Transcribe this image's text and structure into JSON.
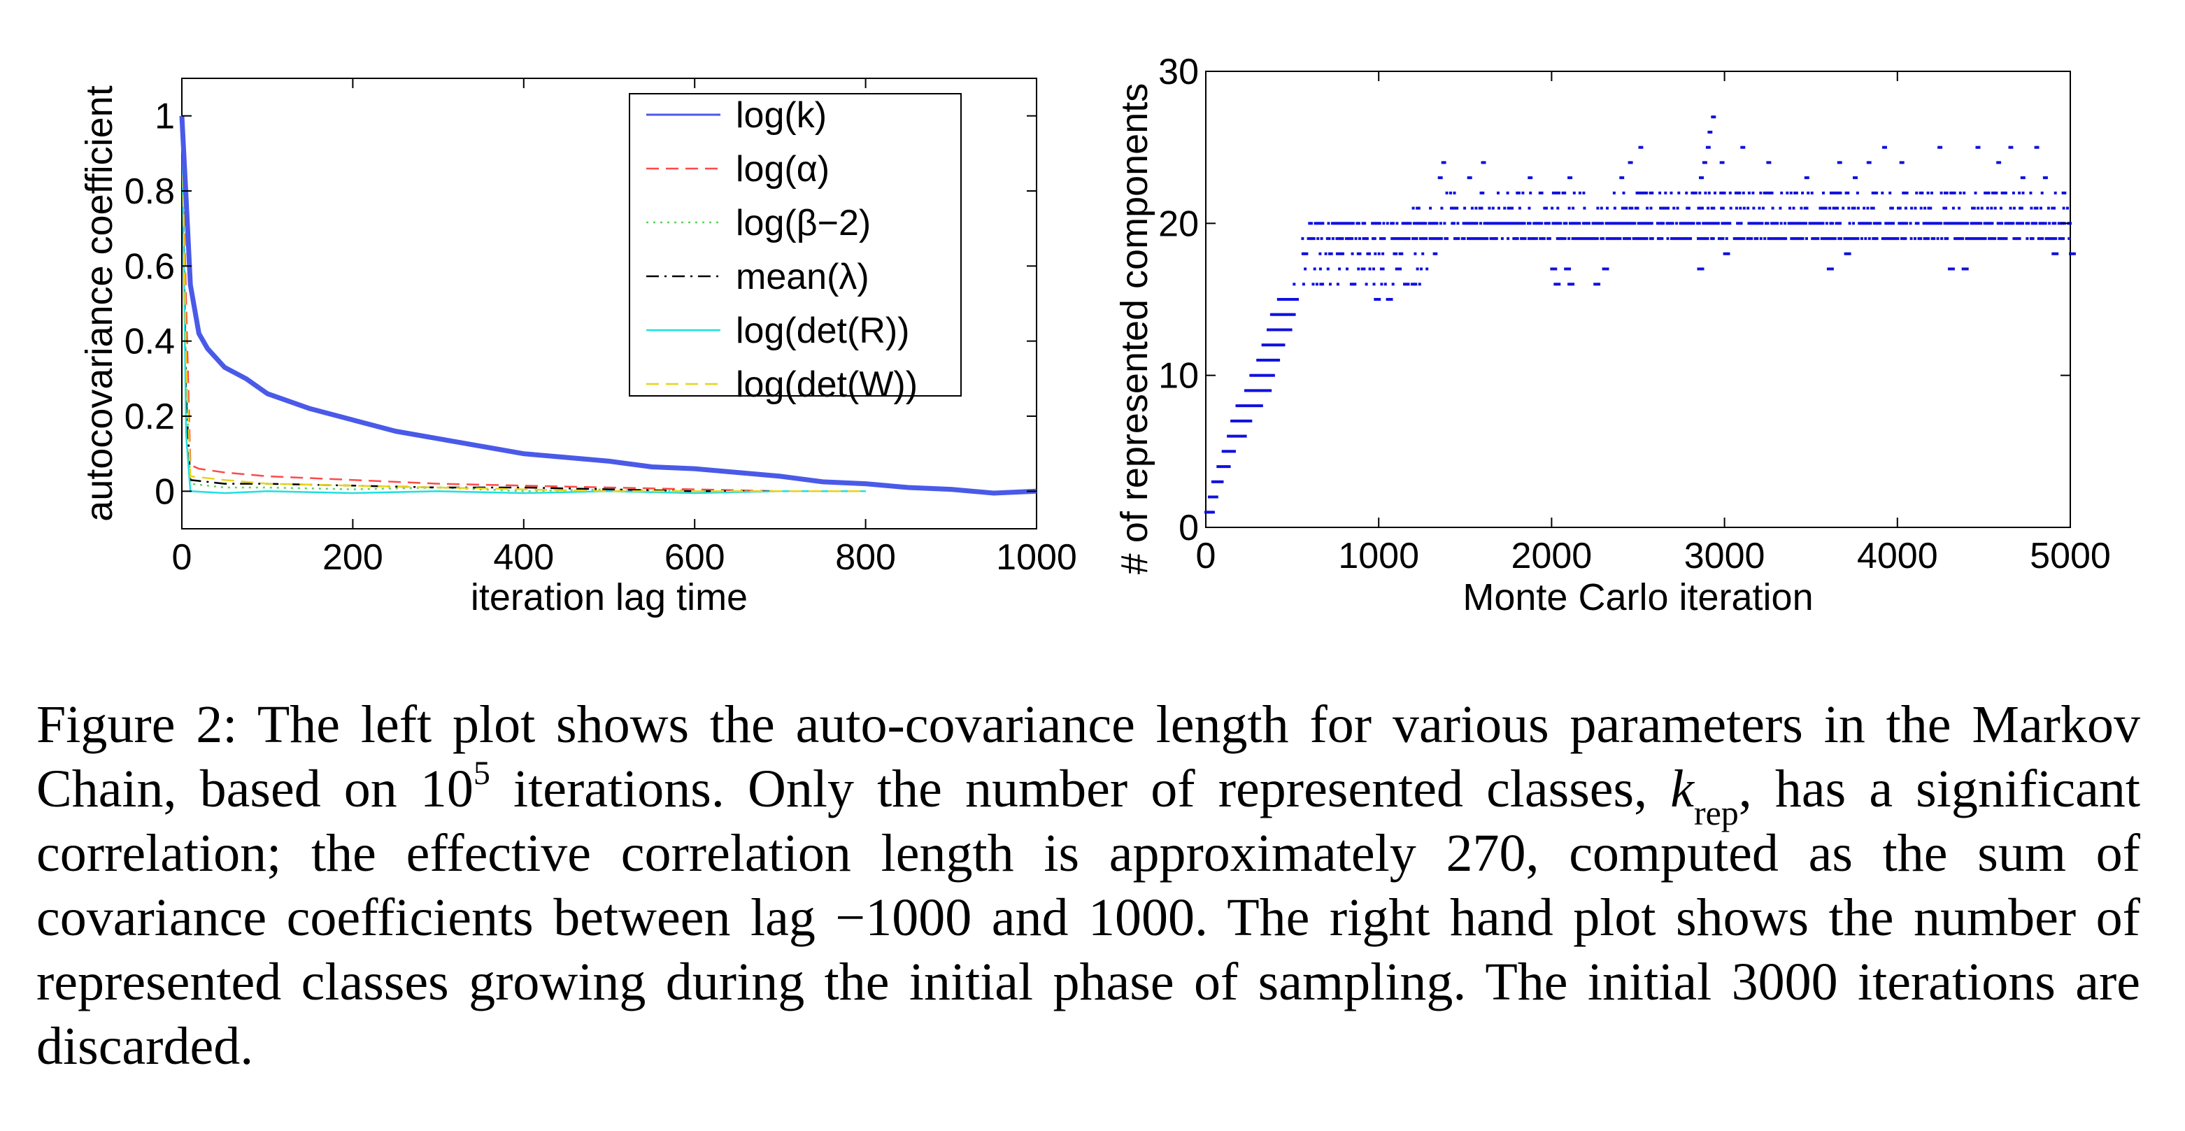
{
  "chart_data": [
    {
      "type": "line",
      "xlabel": "iteration lag time",
      "ylabel": "autocovariance coefficient",
      "xlim": [
        0,
        1000
      ],
      "ylim": [
        -0.1,
        1.1
      ],
      "xticks": [
        0,
        200,
        400,
        600,
        800,
        1000
      ],
      "yticks": [
        0,
        0.2,
        0.4,
        0.6,
        0.8,
        1
      ],
      "xtick_labels": [
        "0",
        "200",
        "400",
        "600",
        "800",
        "1000"
      ],
      "ytick_labels": [
        "0",
        "0.2",
        "0.4",
        "0.6",
        "0.8",
        "1"
      ],
      "grid": false,
      "legend_position": "top-right",
      "series": [
        {
          "name": "log(k)",
          "color": "#4a5ae8",
          "style": "solid",
          "x": [
            0,
            5,
            10,
            20,
            30,
            50,
            75,
            100,
            150,
            200,
            250,
            300,
            350,
            400,
            450,
            500,
            550,
            600,
            650,
            700,
            750,
            800,
            850,
            900,
            950,
            1000
          ],
          "y": [
            1.0,
            0.78,
            0.55,
            0.42,
            0.38,
            0.33,
            0.3,
            0.26,
            0.22,
            0.19,
            0.16,
            0.14,
            0.12,
            0.1,
            0.09,
            0.08,
            0.065,
            0.06,
            0.05,
            0.04,
            0.025,
            0.02,
            0.01,
            0.005,
            -0.005,
            0.0
          ]
        },
        {
          "name": "log(α)",
          "color": "#ff4a4a",
          "style": "dashed",
          "x": [
            0,
            5,
            10,
            20,
            50,
            100,
            200,
            300,
            400,
            500,
            600,
            700,
            800
          ],
          "y": [
            1.0,
            0.5,
            0.07,
            0.06,
            0.05,
            0.04,
            0.03,
            0.02,
            0.015,
            0.01,
            0.005,
            0.0,
            0.0
          ]
        },
        {
          "name": "log(β−2)",
          "color": "#5ad45a",
          "style": "dotted",
          "x": [
            0,
            5,
            10,
            50,
            100,
            200,
            300,
            400,
            500,
            600,
            700,
            800
          ],
          "y": [
            1.0,
            0.3,
            0.02,
            0.01,
            0.01,
            0.005,
            0.01,
            0.0,
            0.005,
            0.0,
            0.0,
            0.0
          ]
        },
        {
          "name": "mean(λ)",
          "color": "#000000",
          "style": "dashdot",
          "x": [
            0,
            5,
            10,
            50,
            100,
            200,
            300,
            400,
            500,
            600,
            700,
            800
          ],
          "y": [
            1.0,
            0.25,
            0.03,
            0.02,
            0.02,
            0.015,
            0.01,
            0.01,
            0.005,
            0.0,
            0.0,
            0.0
          ]
        },
        {
          "name": "log(det(R))",
          "color": "#1ee0e0",
          "style": "solid",
          "x": [
            0,
            5,
            10,
            50,
            100,
            200,
            300,
            400,
            500,
            600,
            700,
            800
          ],
          "y": [
            1.0,
            0.15,
            0.0,
            -0.005,
            0.0,
            -0.005,
            0.0,
            -0.005,
            0.0,
            -0.005,
            0.0,
            0.0
          ]
        },
        {
          "name": "log(det(W))",
          "color": "#e8d21e",
          "style": "dashed",
          "x": [
            0,
            5,
            10,
            50,
            100,
            200,
            300,
            400,
            500,
            600,
            700,
            800
          ],
          "y": [
            1.0,
            0.35,
            0.04,
            0.03,
            0.02,
            0.015,
            0.01,
            0.005,
            0.0,
            0.0,
            0.0,
            0.0
          ]
        }
      ]
    },
    {
      "type": "scatter",
      "xlabel": "Monte Carlo iteration",
      "ylabel": "# of represented components",
      "xlim": [
        0,
        5000
      ],
      "ylim": [
        0,
        30
      ],
      "xticks": [
        0,
        1000,
        2000,
        3000,
        4000,
        5000
      ],
      "yticks": [
        0,
        10,
        20,
        30
      ],
      "xtick_labels": [
        "0",
        "1000",
        "2000",
        "3000",
        "4000",
        "5000"
      ],
      "ytick_labels": [
        "0",
        "10",
        "20",
        "30"
      ],
      "grid": false,
      "color": "#1010e0",
      "series": [
        {
          "x_ranges": [
            [
              0,
              50,
              1
            ],
            [
              20,
              70,
              2
            ],
            [
              40,
              100,
              3
            ],
            [
              70,
              140,
              4
            ],
            [
              100,
              170,
              5
            ],
            [
              130,
              230,
              6
            ],
            [
              150,
              260,
              7
            ],
            [
              180,
              330,
              8
            ],
            [
              230,
              380,
              9
            ],
            [
              260,
              400,
              10
            ],
            [
              300,
              430,
              11
            ],
            [
              330,
              460,
              12
            ],
            [
              360,
              500,
              13
            ],
            [
              380,
              520,
              14
            ],
            [
              420,
              540,
              15
            ],
            [
              500,
              1250,
              16
            ],
            [
              520,
              1300,
              17
            ],
            [
              540,
              1350,
              18
            ],
            [
              560,
              5000,
              19
            ],
            [
              600,
              5000,
              20
            ],
            [
              1200,
              5000,
              21
            ],
            [
              1350,
              5000,
              22
            ]
          ],
          "y_high": [
            [
              1350,
              23
            ],
            [
              1370,
              24
            ],
            [
              1520,
              23
            ],
            [
              1600,
              24
            ],
            [
              1870,
              23
            ],
            [
              2100,
              23
            ],
            [
              2400,
              23
            ],
            [
              2450,
              24
            ],
            [
              2510,
              25
            ],
            [
              2860,
              23
            ],
            [
              2880,
              24
            ],
            [
              2900,
              25
            ],
            [
              2910,
              26
            ],
            [
              2930,
              27
            ],
            [
              2980,
              24
            ],
            [
              3100,
              25
            ],
            [
              3250,
              24
            ],
            [
              3470,
              23
            ],
            [
              3660,
              24
            ],
            [
              3750,
              23
            ],
            [
              3830,
              24
            ],
            [
              3920,
              25
            ],
            [
              4020,
              24
            ],
            [
              4240,
              25
            ],
            [
              4460,
              25
            ],
            [
              4580,
              24
            ],
            [
              4650,
              25
            ],
            [
              4720,
              23
            ],
            [
              4800,
              25
            ],
            [
              4850,
              23
            ]
          ],
          "y_low": [
            [
              980,
              15
            ],
            [
              1050,
              15
            ],
            [
              2000,
              17
            ],
            [
              2020,
              16
            ],
            [
              2080,
              17
            ],
            [
              2100,
              16
            ],
            [
              2250,
              16
            ],
            [
              2300,
              17
            ],
            [
              2850,
              17
            ],
            [
              3000,
              18
            ],
            [
              3600,
              17
            ],
            [
              3700,
              18
            ],
            [
              4300,
              17
            ],
            [
              4380,
              17
            ],
            [
              4900,
              18
            ],
            [
              5000,
              18
            ]
          ]
        }
      ]
    }
  ],
  "caption": {
    "part1": "Figure 2: The left plot shows the auto-covariance length for various parameters in the Markov Chain, based on 10",
    "exponent": "5",
    "part2": " iterations. Only the number of represented classes, ",
    "k_symbol": "k",
    "k_sub": "rep",
    "part3": ", has a significant correlation; the effective correlation length is approximately 270, computed as the sum of covariance coefficients between lag −1000 and 1000. The right hand plot shows the number of represented classes growing during the initial phase of sampling. The initial 3000 iterations are discarded."
  }
}
